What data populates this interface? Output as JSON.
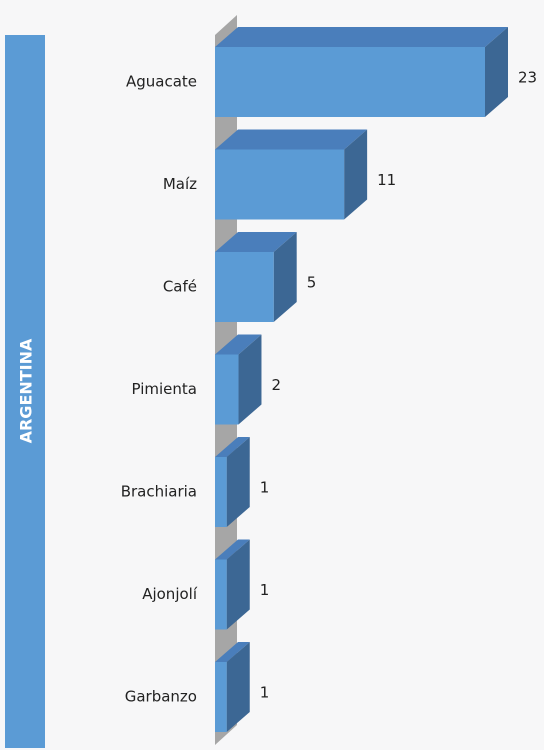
{
  "chart_data": {
    "type": "bar3d",
    "orientation": "horizontal",
    "group_label": "ARGENTINA",
    "categories": [
      "Aguacate",
      "Maíz",
      "Café",
      "Pimienta",
      "Brachiaria",
      "Ajonjolí",
      "Garbanzo"
    ],
    "values": [
      23,
      11,
      5,
      2,
      1,
      1,
      1
    ],
    "color": "#5b9bd5"
  }
}
